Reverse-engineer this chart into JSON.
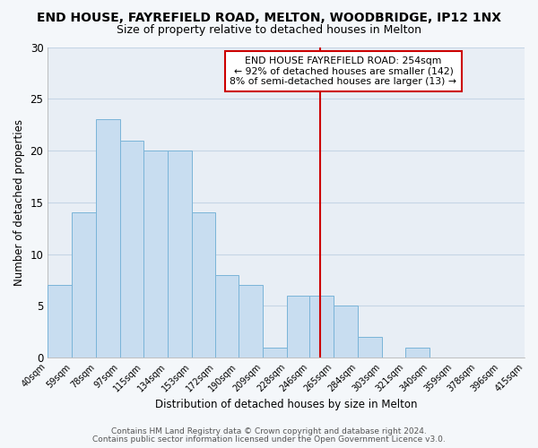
{
  "title": "END HOUSE, FAYREFIELD ROAD, MELTON, WOODBRIDGE, IP12 1NX",
  "subtitle": "Size of property relative to detached houses in Melton",
  "xlabel": "Distribution of detached houses by size in Melton",
  "ylabel": "Number of detached properties",
  "bar_left_edges": [
    40,
    59,
    78,
    97,
    115,
    134,
    153,
    172,
    190,
    209,
    228,
    246,
    265,
    284,
    303,
    321,
    340,
    359,
    378,
    396
  ],
  "bar_widths": [
    19,
    19,
    19,
    18,
    19,
    19,
    19,
    18,
    19,
    19,
    18,
    19,
    19,
    19,
    18,
    19,
    19,
    19,
    18,
    19
  ],
  "bar_heights": [
    7,
    14,
    23,
    21,
    20,
    20,
    14,
    8,
    7,
    1,
    6,
    6,
    5,
    2,
    0,
    1,
    0,
    0,
    0,
    0
  ],
  "bar_color": "#c8ddf0",
  "bar_edge_color": "#7ab4d8",
  "x_tick_labels": [
    "40sqm",
    "59sqm",
    "78sqm",
    "97sqm",
    "115sqm",
    "134sqm",
    "153sqm",
    "172sqm",
    "190sqm",
    "209sqm",
    "228sqm",
    "246sqm",
    "265sqm",
    "284sqm",
    "303sqm",
    "321sqm",
    "340sqm",
    "359sqm",
    "378sqm",
    "396sqm",
    "415sqm"
  ],
  "ylim": [
    0,
    30
  ],
  "yticks": [
    0,
    5,
    10,
    15,
    20,
    25,
    30
  ],
  "vline_x": 254,
  "vline_color": "#cc0000",
  "annotation_title": "END HOUSE FAYREFIELD ROAD: 254sqm",
  "annotation_line1": "← 92% of detached houses are smaller (142)",
  "annotation_line2": "8% of semi-detached houses are larger (13) →",
  "footer1": "Contains HM Land Registry data © Crown copyright and database right 2024.",
  "footer2": "Contains public sector information licensed under the Open Government Licence v3.0.",
  "bg_color": "#f4f7fa",
  "plot_bg_color": "#e8eef5",
  "grid_color": "#c5d5e5",
  "title_fontsize": 10,
  "subtitle_fontsize": 9
}
